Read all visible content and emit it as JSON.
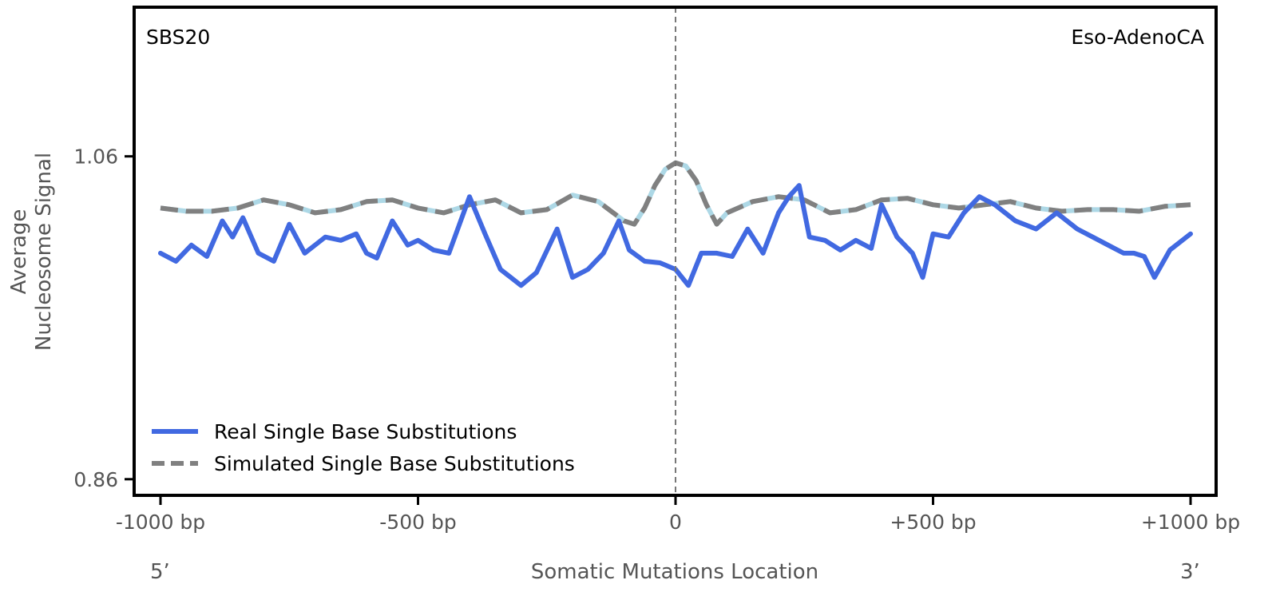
{
  "chart_data": {
    "type": "line",
    "signature_label": "SBS20",
    "cancer_type_label": "Eso-AdenoCA",
    "ylabel_line1": "Average",
    "ylabel_line2": "Nucleosome Signal",
    "xlabel": "Somatic Mutations Location",
    "five_prime_label": "5’",
    "three_prime_label": "3’",
    "xlim": [
      -1000,
      1000
    ],
    "ylim": [
      0.85,
      1.1524
    ],
    "x_ticks": [
      {
        "value": -1000,
        "label": "-1000 bp"
      },
      {
        "value": -500,
        "label": "-500 bp"
      },
      {
        "value": 0,
        "label": "0"
      },
      {
        "value": 500,
        "label": "+500 bp"
      },
      {
        "value": 1000,
        "label": "+1000 bp"
      }
    ],
    "y_ticks": [
      {
        "value": 0.86,
        "label": "0.86"
      },
      {
        "value": 1.06,
        "label": "1.06"
      }
    ],
    "center_line_x": 0,
    "legend_position": "lower-left",
    "grid": false,
    "series": [
      {
        "name": "Real Single Base Substitutions",
        "color": "#4169e1",
        "style": "solid",
        "x": [
          -1000,
          -970,
          -940,
          -910,
          -880,
          -860,
          -840,
          -810,
          -780,
          -750,
          -720,
          -700,
          -680,
          -650,
          -620,
          -600,
          -580,
          -550,
          -520,
          -500,
          -470,
          -440,
          -400,
          -370,
          -340,
          -300,
          -270,
          -230,
          -200,
          -170,
          -140,
          -110,
          -90,
          -60,
          -30,
          0,
          25,
          50,
          80,
          110,
          140,
          170,
          200,
          220,
          240,
          260,
          290,
          320,
          350,
          380,
          400,
          430,
          460,
          480,
          500,
          530,
          560,
          590,
          620,
          660,
          700,
          740,
          780,
          810,
          840,
          870,
          890,
          910,
          930,
          960,
          1000
        ],
        "values": [
          1.0,
          0.995,
          1.005,
          0.998,
          1.02,
          1.01,
          1.022,
          1.0,
          0.995,
          1.018,
          1.0,
          1.005,
          1.01,
          1.008,
          1.012,
          1.0,
          0.997,
          1.02,
          1.005,
          1.008,
          1.002,
          1.0,
          1.035,
          1.012,
          0.99,
          0.98,
          0.988,
          1.015,
          0.985,
          0.99,
          1.0,
          1.02,
          1.002,
          0.995,
          0.994,
          0.99,
          0.98,
          1.0,
          1.0,
          0.998,
          1.015,
          1.0,
          1.025,
          1.035,
          1.042,
          1.01,
          1.008,
          1.002,
          1.008,
          1.003,
          1.03,
          1.01,
          1.0,
          0.985,
          1.012,
          1.01,
          1.025,
          1.035,
          1.03,
          1.02,
          1.015,
          1.025,
          1.015,
          1.01,
          1.005,
          1.0,
          1.0,
          0.998,
          0.985,
          1.002,
          1.012
        ]
      },
      {
        "name": "Simulated Single Base Substitutions",
        "color": "#808080",
        "style": "dashed",
        "x": [
          -1000,
          -950,
          -900,
          -850,
          -800,
          -750,
          -700,
          -650,
          -600,
          -550,
          -500,
          -450,
          -400,
          -350,
          -300,
          -250,
          -200,
          -150,
          -100,
          -80,
          -60,
          -40,
          -20,
          0,
          20,
          40,
          60,
          80,
          100,
          150,
          200,
          250,
          300,
          350,
          400,
          450,
          500,
          550,
          600,
          650,
          700,
          750,
          800,
          850,
          900,
          950,
          1000
        ],
        "values": [
          1.028,
          1.026,
          1.026,
          1.028,
          1.033,
          1.03,
          1.025,
          1.027,
          1.032,
          1.033,
          1.028,
          1.025,
          1.03,
          1.033,
          1.025,
          1.027,
          1.036,
          1.032,
          1.02,
          1.018,
          1.028,
          1.042,
          1.052,
          1.056,
          1.054,
          1.045,
          1.03,
          1.018,
          1.025,
          1.032,
          1.035,
          1.033,
          1.025,
          1.027,
          1.033,
          1.034,
          1.03,
          1.028,
          1.03,
          1.032,
          1.028,
          1.026,
          1.027,
          1.027,
          1.026,
          1.029,
          1.03
        ]
      }
    ]
  }
}
